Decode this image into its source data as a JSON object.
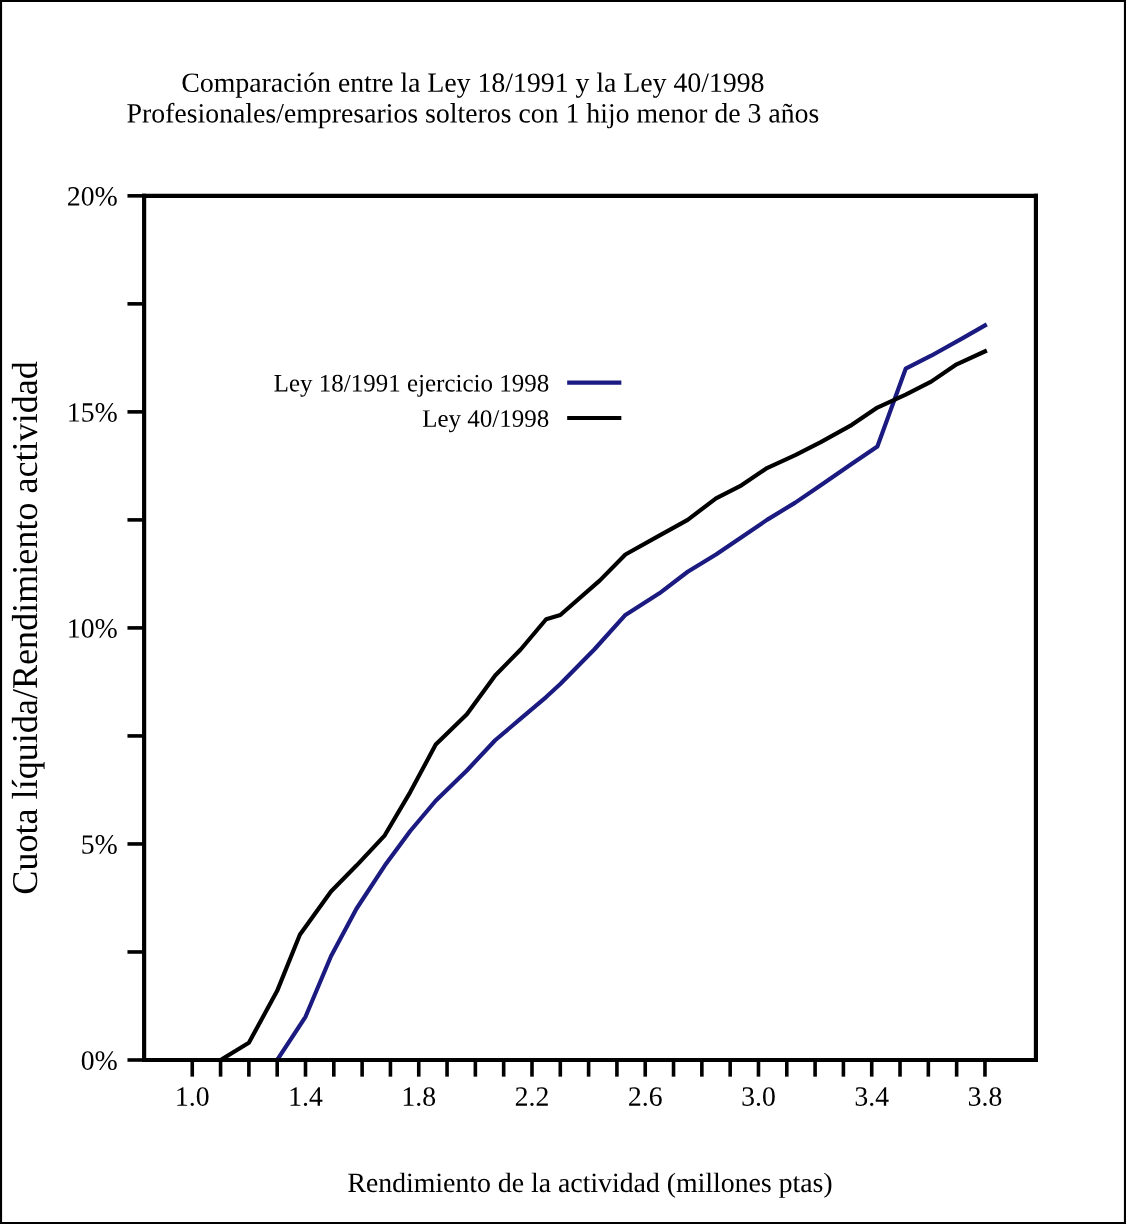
{
  "chart_data": {
    "type": "line",
    "title": "Comparación entre la Ley 18/1991 y la Ley 40/1998",
    "subtitle": "Profesionales/empresarios solteros con 1 hijo menor de 3 años",
    "xlabel": "Rendimiento de la actividad (millones ptas)",
    "ylabel": "Cuota líquida/Rendimiento actividad",
    "series": [
      {
        "name": "Ley 18/1991 ejercicio 1998",
        "color": "#1a1a80",
        "x": [
          1.0,
          1.3,
          1.4,
          1.49,
          1.58,
          1.68,
          1.77,
          1.86,
          1.97,
          2.07,
          2.16,
          2.25,
          2.3,
          2.42,
          2.53,
          2.65,
          2.75,
          2.85,
          2.94,
          3.03,
          3.13,
          3.22,
          3.33,
          3.42,
          3.52,
          3.61,
          3.72,
          3.8
        ],
        "values": [
          0,
          0,
          1.0,
          2.4,
          3.5,
          4.5,
          5.3,
          6.0,
          6.7,
          7.4,
          7.9,
          8.4,
          8.7,
          9.5,
          10.3,
          10.8,
          11.3,
          11.7,
          12.1,
          12.5,
          12.9,
          13.3,
          13.8,
          14.2,
          16.0,
          16.3,
          16.7,
          17.0
        ]
      },
      {
        "name": "Ley 40/1998",
        "color": "#000000",
        "x": [
          1.0,
          1.1,
          1.2,
          1.3,
          1.38,
          1.49,
          1.58,
          1.68,
          1.77,
          1.86,
          1.97,
          2.07,
          2.16,
          2.25,
          2.3,
          2.44,
          2.53,
          2.64,
          2.75,
          2.85,
          2.94,
          3.03,
          3.13,
          3.22,
          3.33,
          3.42,
          3.52,
          3.61,
          3.7,
          3.8
        ],
        "values": [
          0,
          0,
          0.4,
          1.6,
          2.9,
          3.9,
          4.5,
          5.2,
          6.2,
          7.3,
          8.0,
          8.9,
          9.5,
          10.2,
          10.3,
          11.1,
          11.7,
          12.1,
          12.5,
          13.0,
          13.3,
          13.7,
          14.0,
          14.3,
          14.7,
          15.1,
          15.4,
          15.7,
          16.1,
          16.4
        ]
      }
    ],
    "xlim": [
      0.83,
      3.98
    ],
    "xticks": [
      {
        "value": 1.0,
        "label": "1.0"
      },
      {
        "value": 1.1,
        "label": null
      },
      {
        "value": 1.2,
        "label": null
      },
      {
        "value": 1.3,
        "label": null
      },
      {
        "value": 1.4,
        "label": "1.4"
      },
      {
        "value": 1.5,
        "label": null
      },
      {
        "value": 1.6,
        "label": null
      },
      {
        "value": 1.7,
        "label": null
      },
      {
        "value": 1.8,
        "label": "1.8"
      },
      {
        "value": 1.9,
        "label": null
      },
      {
        "value": 2.0,
        "label": null
      },
      {
        "value": 2.1,
        "label": null
      },
      {
        "value": 2.2,
        "label": "2.2"
      },
      {
        "value": 2.3,
        "label": null
      },
      {
        "value": 2.4,
        "label": null
      },
      {
        "value": 2.5,
        "label": null
      },
      {
        "value": 2.6,
        "label": "2.6"
      },
      {
        "value": 2.7,
        "label": null
      },
      {
        "value": 2.8,
        "label": null
      },
      {
        "value": 2.9,
        "label": null
      },
      {
        "value": 3.0,
        "label": "3.0"
      },
      {
        "value": 3.1,
        "label": null
      },
      {
        "value": 3.2,
        "label": null
      },
      {
        "value": 3.3,
        "label": null
      },
      {
        "value": 3.4,
        "label": "3.4"
      },
      {
        "value": 3.5,
        "label": null
      },
      {
        "value": 3.6,
        "label": null
      },
      {
        "value": 3.7,
        "label": null
      },
      {
        "value": 3.8,
        "label": "3.8"
      }
    ],
    "ylim": [
      0,
      20
    ],
    "yticks": [
      {
        "value": 0,
        "label": "0%"
      },
      {
        "value": 2.5,
        "label": null
      },
      {
        "value": 5,
        "label": "5%"
      },
      {
        "value": 7.5,
        "label": null
      },
      {
        "value": 10,
        "label": "10%"
      },
      {
        "value": 12.5,
        "label": null
      },
      {
        "value": 15,
        "label": "15%"
      },
      {
        "value": 17.5,
        "label": null
      },
      {
        "value": 20,
        "label": "20%"
      }
    ],
    "grid": false,
    "legend": "top left",
    "marker": "none",
    "line_style": "solid"
  }
}
